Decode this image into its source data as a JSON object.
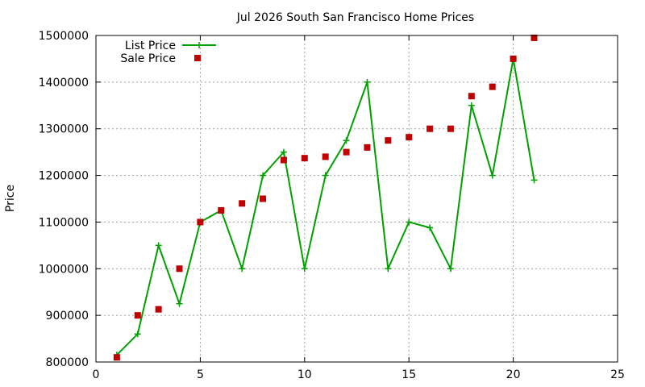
{
  "chart_data": {
    "type": "line",
    "title": "Jul 2026 South San Francisco Home Prices",
    "xlabel": "",
    "ylabel": "Price",
    "xlim": [
      0,
      25
    ],
    "ylim": [
      800000,
      1500000
    ],
    "xticks": [
      0,
      5,
      10,
      15,
      20,
      25
    ],
    "yticks": [
      800000,
      900000,
      1000000,
      1100000,
      1200000,
      1300000,
      1400000,
      1500000
    ],
    "grid": true,
    "legend_position": "top-left",
    "series": [
      {
        "name": "List Price",
        "style": "line-with-plus-markers",
        "color": "#00a000",
        "x": [
          1,
          2,
          3,
          4,
          5,
          6,
          7,
          8,
          9,
          10,
          11,
          12,
          13,
          14,
          15,
          16,
          17,
          18,
          19,
          20,
          21
        ],
        "values": [
          815000,
          860000,
          1050000,
          925000,
          1100000,
          1125000,
          1000000,
          1200000,
          1250000,
          1000000,
          1200000,
          1275000,
          1400000,
          1000000,
          1100000,
          1088000,
          1000000,
          1350000,
          1200000,
          1450000,
          1190000
        ]
      },
      {
        "name": "Sale Price",
        "style": "square-markers",
        "color": "#c00000",
        "x": [
          1,
          2,
          3,
          4,
          5,
          6,
          7,
          8,
          9,
          10,
          11,
          12,
          13,
          14,
          15,
          16,
          17,
          18,
          19,
          20,
          21
        ],
        "values": [
          810000,
          900000,
          913000,
          1000000,
          1100000,
          1125000,
          1140000,
          1150000,
          1233000,
          1237000,
          1240000,
          1250000,
          1260000,
          1275000,
          1282000,
          1300000,
          1300000,
          1370000,
          1390000,
          1450000,
          1495000
        ]
      }
    ]
  }
}
